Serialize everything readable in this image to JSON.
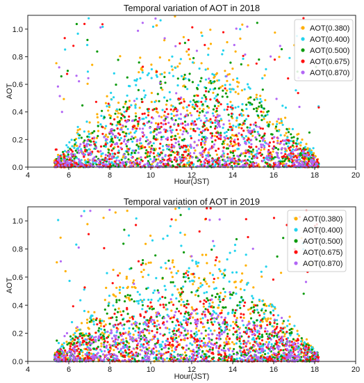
{
  "chart_data": [
    {
      "type": "scatter",
      "title": "Temporal variation of AOT in 2018",
      "xlabel": "Hour(JST)",
      "ylabel": "AOT",
      "xlim": [
        4,
        20
      ],
      "ylim": [
        0,
        1.1
      ],
      "xticks": [
        "4",
        "6",
        "8",
        "10",
        "12",
        "14",
        "16",
        "18",
        "20"
      ],
      "yticks": [
        "0.0",
        "0.2",
        "0.4",
        "0.6",
        "0.8",
        "1.0"
      ],
      "x_range_observed": [
        5.3,
        18.2
      ],
      "legend_position": "top-right",
      "series": [
        {
          "name": "AOT(0.380)",
          "color": "#ffb000",
          "typical_envelope_peak": 0.75
        },
        {
          "name": "AOT(0.400)",
          "color": "#22d3ee",
          "typical_envelope_peak": 0.7
        },
        {
          "name": "AOT(0.500)",
          "color": "#0a9a0a",
          "typical_envelope_peak": 0.6
        },
        {
          "name": "AOT(0.675)",
          "color": "#ff1010",
          "typical_envelope_peak": 0.45
        },
        {
          "name": "AOT(0.870)",
          "color": "#b266f5",
          "typical_envelope_peak": 0.35
        }
      ]
    },
    {
      "type": "scatter",
      "title": "Temporal variation of AOT in 2019",
      "xlabel": "Hour(JST)",
      "ylabel": "AOT",
      "xlim": [
        4,
        20
      ],
      "ylim": [
        0,
        1.1
      ],
      "xticks": [
        "4",
        "6",
        "8",
        "10",
        "12",
        "14",
        "16",
        "18",
        "20"
      ],
      "yticks": [
        "0.0",
        "0.2",
        "0.4",
        "0.6",
        "0.8",
        "1.0"
      ],
      "x_range_observed": [
        5.3,
        18.2
      ],
      "legend_position": "top-right",
      "series": [
        {
          "name": "AOT(0.380)",
          "color": "#ffb000",
          "typical_envelope_peak": 0.7
        },
        {
          "name": "AOT(0.400)",
          "color": "#22d3ee",
          "typical_envelope_peak": 0.65
        },
        {
          "name": "AOT(0.500)",
          "color": "#0a9a0a",
          "typical_envelope_peak": 0.55
        },
        {
          "name": "AOT(0.675)",
          "color": "#ff1010",
          "typical_envelope_peak": 0.42
        },
        {
          "name": "AOT(0.870)",
          "color": "#b266f5",
          "typical_envelope_peak": 0.3
        }
      ]
    }
  ]
}
